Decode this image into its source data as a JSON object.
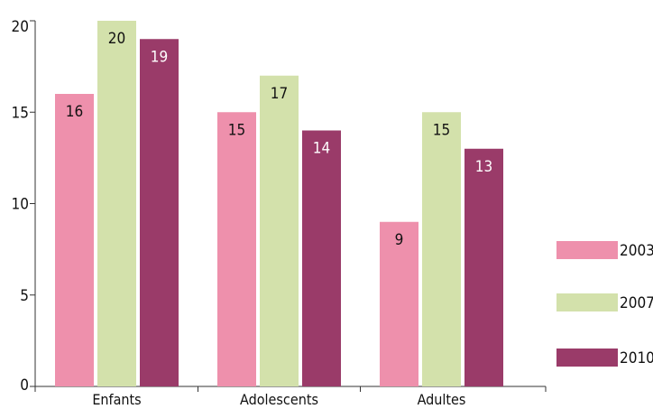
{
  "chart_data": {
    "type": "bar",
    "categories": [
      "Enfants",
      "Adolescents",
      "Adultes"
    ],
    "series": [
      {
        "name": "2003",
        "values": [
          16,
          15,
          9
        ],
        "color": "#ee90ac",
        "label_color": "#111111"
      },
      {
        "name": "2007",
        "values": [
          20,
          17,
          15
        ],
        "color": "#d3e1ab",
        "label_color": "#111111"
      },
      {
        "name": "2010",
        "values": [
          19,
          14,
          13
        ],
        "color": "#9a3b69",
        "label_color": "#ffffff"
      }
    ],
    "yticks": [
      0,
      5,
      10,
      15,
      20
    ],
    "ylim": [
      0,
      20
    ],
    "grid": false,
    "legend_position": "right",
    "title": "",
    "xlabel": "",
    "ylabel": ""
  }
}
